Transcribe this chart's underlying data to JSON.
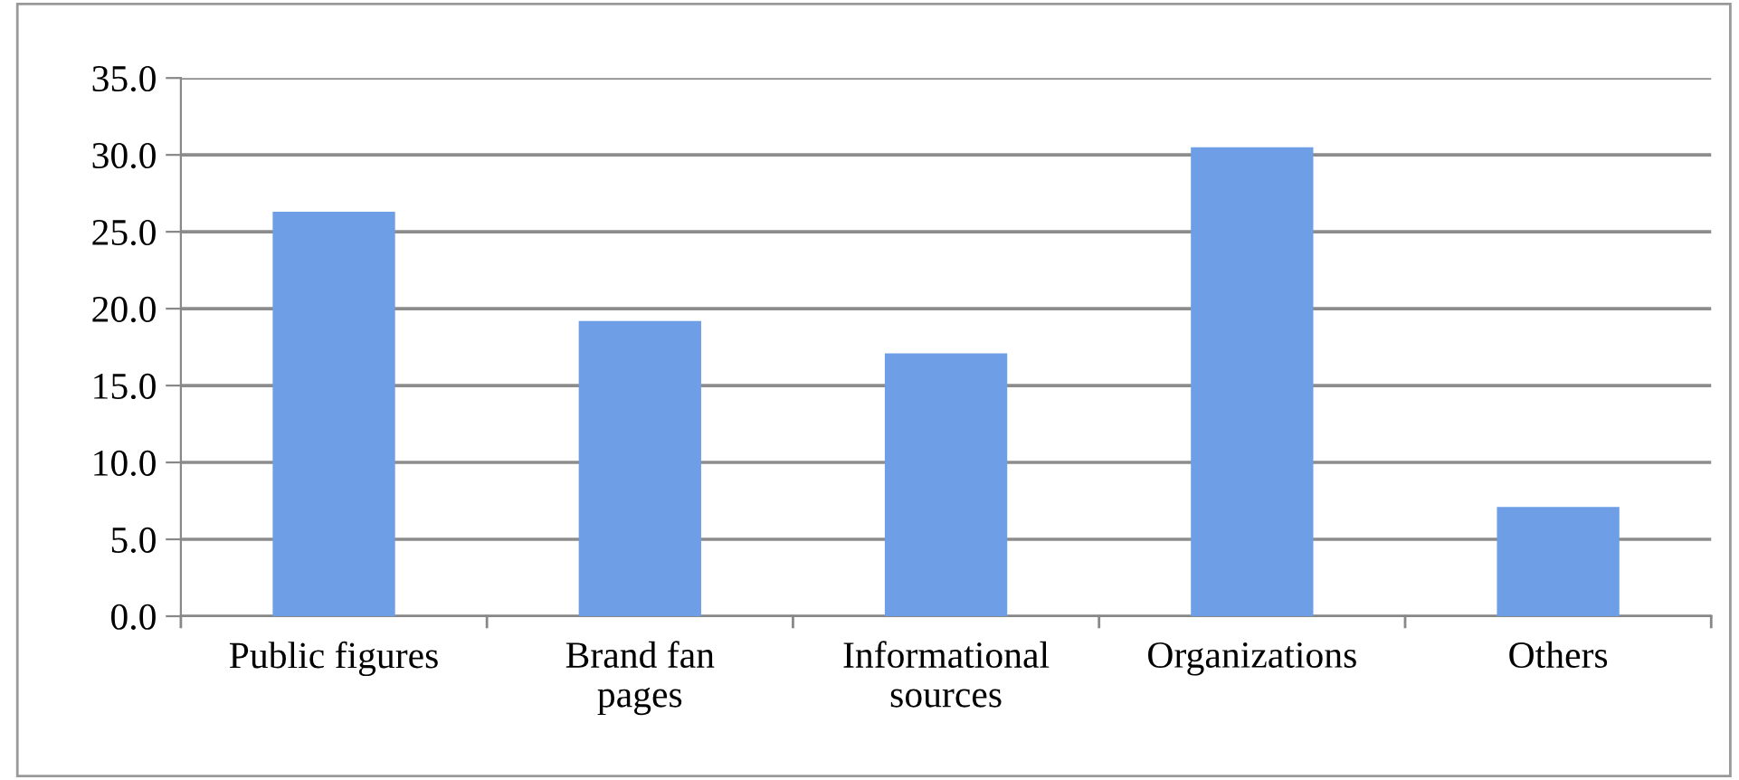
{
  "chart_data": {
    "type": "bar",
    "categories": [
      "Public figures",
      "Brand fan\npages",
      "Informational\nsources",
      "Organizations",
      "Others"
    ],
    "values": [
      26.3,
      19.2,
      17.1,
      30.5,
      7.1
    ],
    "color": "#6e9fe6",
    "ylim": [
      0,
      35
    ],
    "yticks": [
      {
        "value": 0,
        "label": "0.0"
      },
      {
        "value": 5,
        "label": "5.0"
      },
      {
        "value": 10,
        "label": "10.0"
      },
      {
        "value": 15,
        "label": "15.0"
      },
      {
        "value": 20,
        "label": "20.0"
      },
      {
        "value": 25,
        "label": "25.0"
      },
      {
        "value": 30,
        "label": "30.0"
      },
      {
        "value": 35,
        "label": "35.0"
      }
    ],
    "grid": "y"
  }
}
